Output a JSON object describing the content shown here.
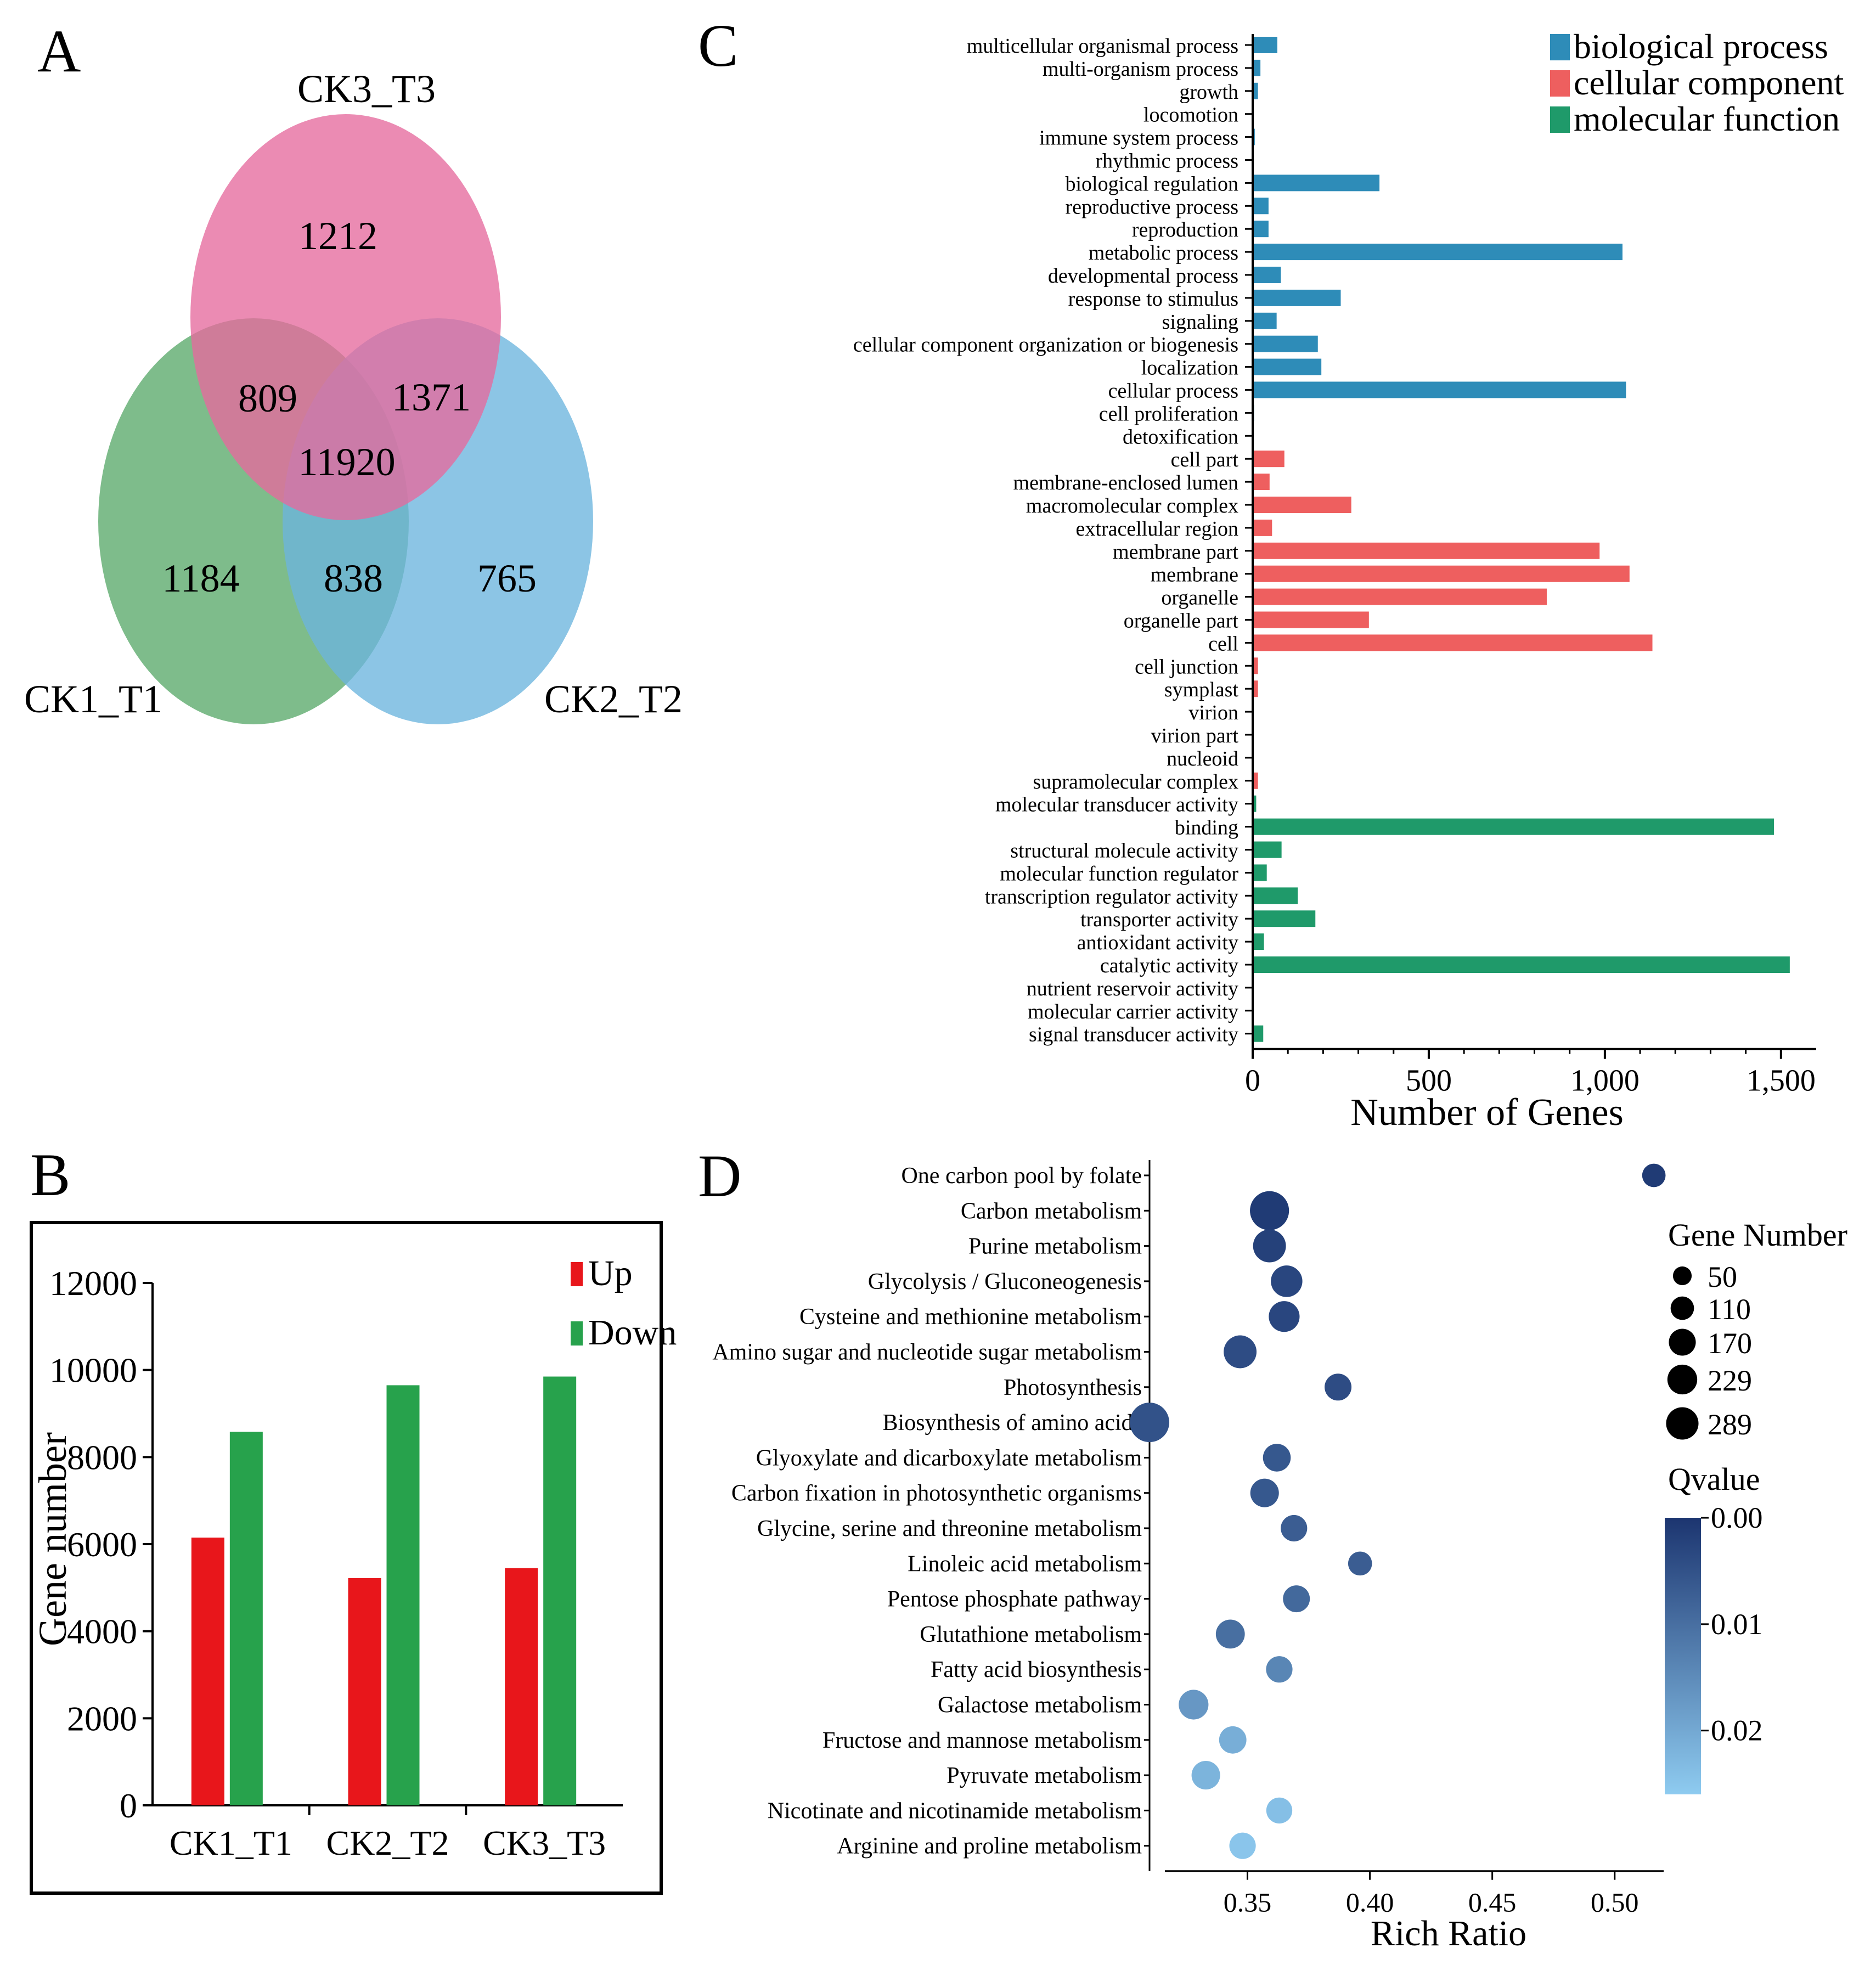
{
  "panels": {
    "a": "A",
    "b": "B",
    "c": "C",
    "d": "D"
  },
  "colors": {
    "venn_ck3": "#e56a9e",
    "venn_ck1": "#5aa96a",
    "venn_ck2": "#6bb5de",
    "bp": "#2e8cb8",
    "cc": "#ee5f5f",
    "mf": "#1f9a6a",
    "up": "#e8161b",
    "down": "#27a24c",
    "qval_low": "#1c3570",
    "qval_high": "#8ecbf0"
  },
  "chart_data": [
    {
      "type": "venn",
      "sets": [
        "CK3_T3",
        "CK1_T1",
        "CK2_T2"
      ],
      "regions": {
        "ck3_only": "1212",
        "ck1_ck3": "809",
        "ck2_ck3": "1371",
        "all": "11920",
        "ck1_only": "1184",
        "ck1_ck2": "838",
        "ck2_only": "765"
      }
    },
    {
      "type": "bar",
      "categories": [
        "CK1_T1",
        "CK2_T2",
        "CK3_T3"
      ],
      "series": [
        {
          "name": "Up",
          "values": [
            6150,
            5220,
            5450
          ]
        },
        {
          "name": "Down",
          "values": [
            8580,
            9650,
            9850
          ]
        }
      ],
      "ylabel": "Gene number",
      "ylim": [
        0,
        12000
      ],
      "yticks": [
        "0",
        "2000",
        "4000",
        "6000",
        "8000",
        "10000",
        "12000"
      ],
      "legend": "top-right"
    },
    {
      "type": "bar",
      "orientation": "horizontal",
      "legend": [
        "biological process",
        "cellular component",
        "molecular function"
      ],
      "xlabel": "Number of Genes",
      "xlim": [
        0,
        1600
      ],
      "xticks": [
        "0",
        "500",
        "1,000",
        "1,500"
      ],
      "categories": [
        {
          "name": "multicellular organismal process",
          "group": 0,
          "value": 70
        },
        {
          "name": "multi-organism process",
          "group": 0,
          "value": 22
        },
        {
          "name": "growth",
          "group": 0,
          "value": 15
        },
        {
          "name": "locomotion",
          "group": 0,
          "value": 2
        },
        {
          "name": "immune system process",
          "group": 0,
          "value": 6
        },
        {
          "name": "rhythmic process",
          "group": 0,
          "value": 2
        },
        {
          "name": "biological regulation",
          "group": 0,
          "value": 360
        },
        {
          "name": "reproductive process",
          "group": 0,
          "value": 45
        },
        {
          "name": "reproduction",
          "group": 0,
          "value": 45
        },
        {
          "name": "metabolic process",
          "group": 0,
          "value": 1050
        },
        {
          "name": "developmental process",
          "group": 0,
          "value": 80
        },
        {
          "name": "response to stimulus",
          "group": 0,
          "value": 250
        },
        {
          "name": "signaling",
          "group": 0,
          "value": 68
        },
        {
          "name": "cellular component organization or biogenesis",
          "group": 0,
          "value": 185
        },
        {
          "name": "localization",
          "group": 0,
          "value": 195
        },
        {
          "name": "cellular process",
          "group": 0,
          "value": 1060
        },
        {
          "name": "cell proliferation",
          "group": 0,
          "value": 4
        },
        {
          "name": "detoxification",
          "group": 0,
          "value": 2
        },
        {
          "name": "cell part",
          "group": 1,
          "value": 90
        },
        {
          "name": "membrane-enclosed lumen",
          "group": 1,
          "value": 48
        },
        {
          "name": "macromolecular complex",
          "group": 1,
          "value": 280
        },
        {
          "name": "extracellular region",
          "group": 1,
          "value": 55
        },
        {
          "name": "membrane part",
          "group": 1,
          "value": 985
        },
        {
          "name": "membrane",
          "group": 1,
          "value": 1070
        },
        {
          "name": "organelle",
          "group": 1,
          "value": 835
        },
        {
          "name": "organelle part",
          "group": 1,
          "value": 330
        },
        {
          "name": "cell",
          "group": 1,
          "value": 1135
        },
        {
          "name": "cell junction",
          "group": 1,
          "value": 15
        },
        {
          "name": "symplast",
          "group": 1,
          "value": 15
        },
        {
          "name": "virion",
          "group": 1,
          "value": 3
        },
        {
          "name": "virion part",
          "group": 1,
          "value": 3
        },
        {
          "name": "nucleoid",
          "group": 1,
          "value": 2
        },
        {
          "name": "supramolecular complex",
          "group": 1,
          "value": 15
        },
        {
          "name": "molecular transducer activity",
          "group": 2,
          "value": 10
        },
        {
          "name": "binding",
          "group": 2,
          "value": 1480
        },
        {
          "name": "structural molecule activity",
          "group": 2,
          "value": 82
        },
        {
          "name": "molecular function regulator",
          "group": 2,
          "value": 40
        },
        {
          "name": "transcription regulator activity",
          "group": 2,
          "value": 128
        },
        {
          "name": "transporter activity",
          "group": 2,
          "value": 178
        },
        {
          "name": "antioxidant activity",
          "group": 2,
          "value": 32
        },
        {
          "name": "catalytic activity",
          "group": 2,
          "value": 1525
        },
        {
          "name": "nutrient reservoir activity",
          "group": 2,
          "value": 2
        },
        {
          "name": "molecular carrier activity",
          "group": 2,
          "value": 2
        },
        {
          "name": "signal transducer activity",
          "group": 2,
          "value": 30
        }
      ]
    },
    {
      "type": "scatter",
      "xlabel": "Rich Ratio",
      "xlim": [
        0.31,
        0.52
      ],
      "xticks": [
        0.35,
        0.4,
        0.45,
        0.5
      ],
      "xtick_labels": [
        "0.35",
        "0.40",
        "0.45",
        "0.50"
      ],
      "size_legend_title": "Gene Number",
      "size_legend": [
        "50",
        "110",
        "170",
        "229",
        "289"
      ],
      "size_values": [
        50,
        110,
        170,
        229,
        289
      ],
      "color_legend_title": "Qvalue",
      "color_ticks": [
        "0.00",
        "0.01",
        "0.02"
      ],
      "color_range": [
        0,
        0.026
      ],
      "points": [
        {
          "term": "One carbon pool by folate",
          "x": 0.516,
          "genes": 55,
          "q": 0.001
        },
        {
          "term": "Carbon metabolism",
          "x": 0.359,
          "genes": 280,
          "q": 0.001
        },
        {
          "term": "Purine metabolism",
          "x": 0.359,
          "genes": 170,
          "q": 0.002
        },
        {
          "term": "Glycolysis / Gluconeogenesis",
          "x": 0.366,
          "genes": 150,
          "q": 0.003
        },
        {
          "term": "Cysteine and methionine metabolism",
          "x": 0.365,
          "genes": 140,
          "q": 0.003
        },
        {
          "term": "Amino sugar and nucleotide sugar metabolism",
          "x": 0.347,
          "genes": 170,
          "q": 0.004
        },
        {
          "term": "Photosynthesis",
          "x": 0.387,
          "genes": 90,
          "q": 0.004
        },
        {
          "term": "Biosynthesis of amino acids",
          "x": 0.31,
          "genes": 289,
          "q": 0.005
        },
        {
          "term": "Glyoxylate and dicarboxylate metabolism",
          "x": 0.362,
          "genes": 100,
          "q": 0.006
        },
        {
          "term": "Carbon fixation in photosynthetic organisms",
          "x": 0.357,
          "genes": 110,
          "q": 0.006
        },
        {
          "term": "Glycine, serine and threonine metabolism",
          "x": 0.369,
          "genes": 85,
          "q": 0.007
        },
        {
          "term": "Linoleic acid metabolism",
          "x": 0.396,
          "genes": 60,
          "q": 0.007
        },
        {
          "term": "Pentose phosphate pathway",
          "x": 0.37,
          "genes": 90,
          "q": 0.009
        },
        {
          "term": "Glutathione metabolism",
          "x": 0.343,
          "genes": 115,
          "q": 0.01
        },
        {
          "term": "Fatty acid biosynthesis",
          "x": 0.363,
          "genes": 85,
          "q": 0.014
        },
        {
          "term": "Galactose metabolism",
          "x": 0.328,
          "genes": 125,
          "q": 0.017
        },
        {
          "term": "Fructose and mannose metabolism",
          "x": 0.344,
          "genes": 95,
          "q": 0.021
        },
        {
          "term": "Pyruvate metabolism",
          "x": 0.333,
          "genes": 110,
          "q": 0.022
        },
        {
          "term": "Nicotinate and nicotinamide metabolism",
          "x": 0.363,
          "genes": 80,
          "q": 0.024
        },
        {
          "term": "Arginine and proline metabolism",
          "x": 0.348,
          "genes": 85,
          "q": 0.025
        }
      ]
    }
  ]
}
